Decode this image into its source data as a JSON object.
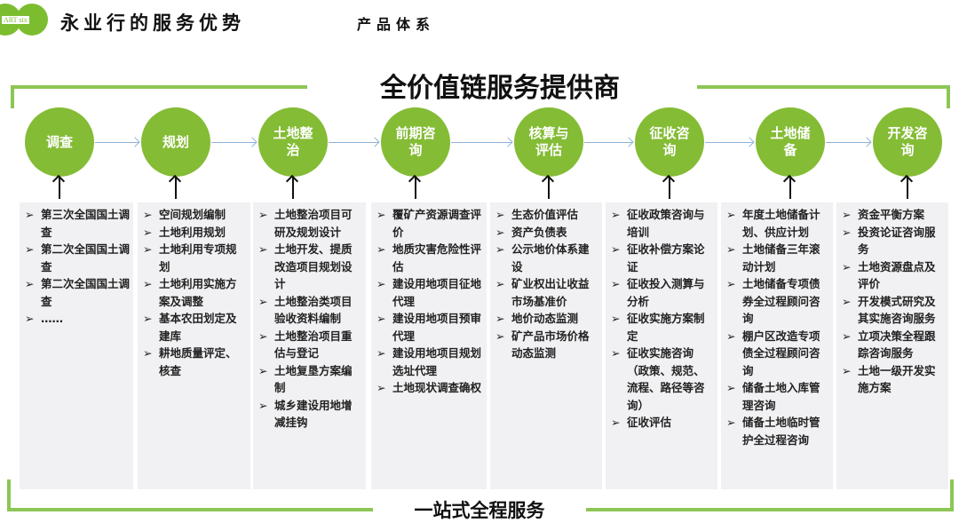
{
  "header": {
    "logo_text": "ART six",
    "title": "永业行的服务优势",
    "subtitle": "产品体系"
  },
  "main_title": "全价值链服务提供商",
  "bottom_title": "一站式全程服务",
  "colors": {
    "accent": "#84bc35",
    "bracket": "#8cc655",
    "arrow": "#8fb3d9",
    "box_bg": "#f1f1f3"
  },
  "bullet": "➢",
  "stages": [
    {
      "label": "调查",
      "items": [
        "第三次全国国土调查",
        "第二次全国国土调查",
        "第二次全国国土调查",
        "……"
      ]
    },
    {
      "label": "规划",
      "items": [
        "空间规划编制",
        "土地利用规划",
        "土地利用专项规划",
        "土地利用实施方案及调整",
        "基本农田划定及建库",
        "耕地质量评定、核查"
      ]
    },
    {
      "label": "土地整治",
      "items": [
        "土地整治项目可研及规划设计",
        "土地开发、提质改造项目规划设计",
        "土地整治类项目验收资料编制",
        "土地整治项目重估与登记",
        "土地复垦方案编制",
        "城乡建设用地增减挂钩"
      ]
    },
    {
      "label": "前期咨询",
      "items": [
        "覆矿产资源调查评价",
        "地质灾害危险性评估",
        "建设用地项目征地代理",
        "建设用地项目预审代理",
        "建设用地项目规划选址代理",
        "土地现状调查确权"
      ]
    },
    {
      "label": "核算与评估",
      "items": [
        "生态价值评估",
        "资产负债表",
        "公示地价体系建设",
        "矿业权出让收益市场基准价",
        "地价动态监测",
        "矿产品市场价格动态监测"
      ]
    },
    {
      "label": "征收咨询",
      "items": [
        "征收政策咨询与培训",
        "征收补偿方案论证",
        "征收投入测算与分析",
        "征收实施方案制定",
        "征收实施咨询（政策、规范、流程、路径等咨询）",
        "征收评估"
      ]
    },
    {
      "label": "土地储备",
      "items": [
        "年度土地储备计划、供应计划",
        "土地储备三年滚动计划",
        "土地储备专项债券全过程顾问咨询",
        "棚户区改造专项债全过程顾问咨询",
        "储备土地入库管理咨询",
        "储备土地临时管护全过程咨询"
      ]
    },
    {
      "label": "开发咨询",
      "items": [
        "资金平衡方案",
        "投资论证咨询服务",
        "土地资源盘点及评价",
        "开发模式研究及其实施咨询服务",
        "立项决策全程跟踪咨询服务",
        "土地一级开发实施方案"
      ]
    }
  ]
}
